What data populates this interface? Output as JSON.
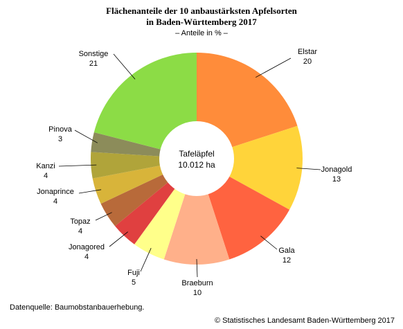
{
  "header": {
    "title_line1": "Flächenanteile der 10 anbaustärksten Apfelsorten",
    "title_line2": "in Baden-Württemberg 2017",
    "subtitle": "– Anteile in % –"
  },
  "center": {
    "line1": "Tafeläpfel",
    "line2": "10.012 ha"
  },
  "footer": {
    "source": "Datenquelle: Baumobstanbauerhebung.",
    "copyright": "© Statistisches Landesamt Baden-Württemberg 2017"
  },
  "chart_data": {
    "type": "pie",
    "variant": "donut",
    "title": "Flächenanteile der 10 anbaustärksten Apfelsorten in Baden-Württemberg 2017",
    "subtitle": "– Anteile in % –",
    "unit": "%",
    "categories": [
      "Elstar",
      "Jonagold",
      "Gala",
      "Braeburn",
      "Fuji",
      "Jonagored",
      "Topaz",
      "Jonaprince",
      "Kanzi",
      "Pinova",
      "Sonstige"
    ],
    "values": [
      20,
      13,
      12,
      10,
      5,
      4,
      4,
      4,
      4,
      3,
      21
    ],
    "colors": [
      "#ff8c3a",
      "#ffd43a",
      "#ff6340",
      "#ffb08a",
      "#ffff8a",
      "#e04040",
      "#b86a3a",
      "#d8b43a",
      "#b0a43a",
      "#8c8c5a",
      "#8cdc46"
    ],
    "start": "12 o'clock",
    "direction": "clockwise",
    "legend": "none"
  }
}
